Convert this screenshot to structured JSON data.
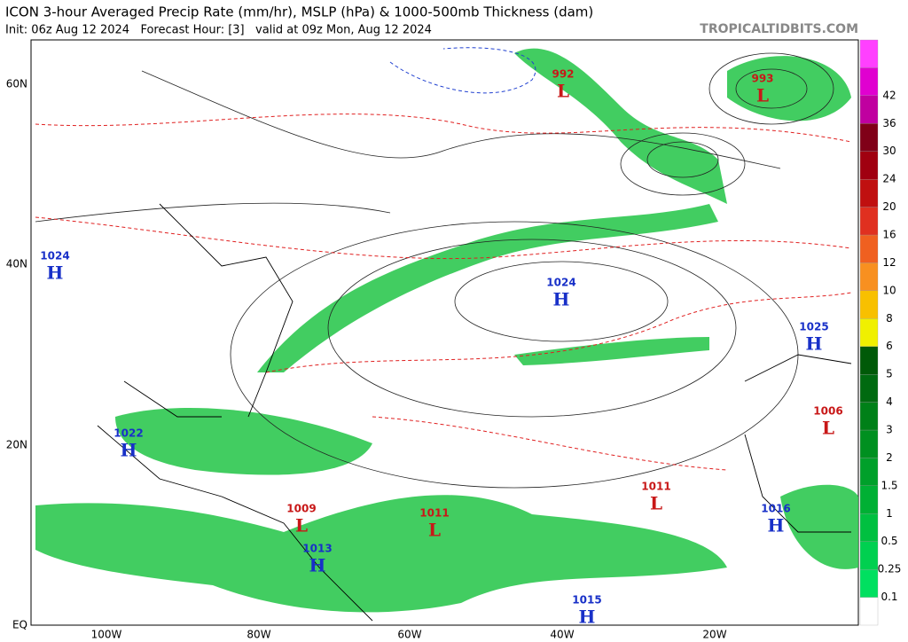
{
  "header": {
    "title": "ICON 3-hour Averaged Precip Rate (mm/hr), MSLP (hPa) & 1000-500mb Thickness (dam)",
    "subtitle": "Init: 06z Aug 12 2024   Forecast Hour: [3]   valid at 09z Mon, Aug 12 2024",
    "source": "TROPICALTIDBITS.COM"
  },
  "map": {
    "lat_labels": [
      "60N",
      "40N",
      "20N",
      "EQ"
    ],
    "lon_labels": [
      "100W",
      "80W",
      "60W",
      "40W",
      "20W"
    ],
    "centers": [
      {
        "type": "L",
        "value": "992"
      },
      {
        "type": "L",
        "value": "993"
      },
      {
        "type": "H",
        "value": "1024"
      },
      {
        "type": "H",
        "value": "1024"
      },
      {
        "type": "H",
        "value": "1025"
      },
      {
        "type": "L",
        "value": "1006"
      },
      {
        "type": "H",
        "value": "1022"
      },
      {
        "type": "L",
        "value": "1009"
      },
      {
        "type": "H",
        "value": "1013"
      },
      {
        "type": "L",
        "value": "1011"
      },
      {
        "type": "L",
        "value": "1011"
      },
      {
        "type": "H",
        "value": "1016"
      },
      {
        "type": "H",
        "value": "1015"
      }
    ]
  },
  "colorbar": {
    "labels": [
      "0.1",
      "0.25",
      "0.5",
      "1",
      "1.5",
      "2",
      "3",
      "4",
      "5",
      "6",
      "8",
      "10",
      "12",
      "16",
      "20",
      "24",
      "30",
      "36",
      "42"
    ],
    "colors": [
      "#ffffff",
      "#00e060",
      "#00d050",
      "#00c040",
      "#00b034",
      "#00a02a",
      "#009020",
      "#008018",
      "#006a10",
      "#005a08",
      "#f0f000",
      "#f8c000",
      "#f89020",
      "#f06020",
      "#e03020",
      "#c01010",
      "#a00010",
      "#800018",
      "#c000a0",
      "#e000d0",
      "#ff40ff"
    ]
  }
}
